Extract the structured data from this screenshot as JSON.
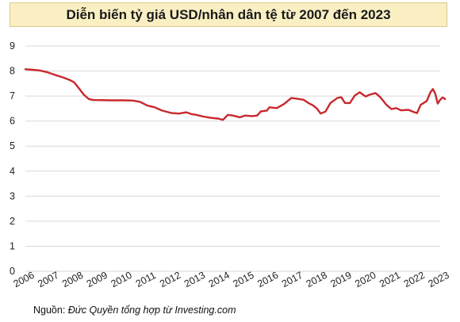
{
  "title": "Diễn biến tỷ giá USD/nhân dân tệ từ 2007 đến 2023",
  "source": {
    "prefix": "Nguồn: ",
    "text": "Đức Quyền tổng hợp từ Investing.com"
  },
  "colors": {
    "line": "#c8282d",
    "banner_bg": "#f9efc3",
    "grid": "#d9d9d9"
  },
  "chart_data": {
    "type": "line",
    "title": "Diễn biến tỷ giá USD/nhân dân tệ từ 2007 đến 2023",
    "xlabel": "",
    "ylabel": "",
    "xlim": [
      2006,
      2023
    ],
    "ylim": [
      0,
      9
    ],
    "grid": true,
    "y_ticks": [
      "0",
      "1",
      "2",
      "3",
      "4",
      "5",
      "6",
      "7",
      "8",
      "9"
    ],
    "x_ticks": [
      "2006",
      "2007",
      "2008",
      "2009",
      "2010",
      "2011",
      "2012",
      "2013",
      "2014",
      "2015",
      "2016",
      "2017",
      "2018",
      "2019",
      "2020",
      "2021",
      "2022",
      "2023"
    ],
    "series": [
      {
        "points": [
          [
            2006.0,
            8.07
          ],
          [
            2006.3,
            8.05
          ],
          [
            2006.6,
            8.02
          ],
          [
            2006.9,
            7.95
          ],
          [
            2007.2,
            7.85
          ],
          [
            2007.5,
            7.76
          ],
          [
            2007.8,
            7.65
          ],
          [
            2008.0,
            7.55
          ],
          [
            2008.2,
            7.3
          ],
          [
            2008.4,
            7.05
          ],
          [
            2008.6,
            6.88
          ],
          [
            2008.8,
            6.84
          ],
          [
            2009.0,
            6.84
          ],
          [
            2009.5,
            6.83
          ],
          [
            2010.0,
            6.83
          ],
          [
            2010.4,
            6.82
          ],
          [
            2010.7,
            6.77
          ],
          [
            2011.0,
            6.62
          ],
          [
            2011.3,
            6.55
          ],
          [
            2011.6,
            6.42
          ],
          [
            2012.0,
            6.32
          ],
          [
            2012.3,
            6.3
          ],
          [
            2012.6,
            6.35
          ],
          [
            2012.8,
            6.28
          ],
          [
            2013.0,
            6.25
          ],
          [
            2013.3,
            6.18
          ],
          [
            2013.6,
            6.13
          ],
          [
            2013.9,
            6.1
          ],
          [
            2014.1,
            6.05
          ],
          [
            2014.3,
            6.25
          ],
          [
            2014.5,
            6.22
          ],
          [
            2014.8,
            6.15
          ],
          [
            2015.0,
            6.22
          ],
          [
            2015.3,
            6.2
          ],
          [
            2015.5,
            6.22
          ],
          [
            2015.65,
            6.39
          ],
          [
            2015.9,
            6.42
          ],
          [
            2016.0,
            6.55
          ],
          [
            2016.3,
            6.52
          ],
          [
            2016.6,
            6.68
          ],
          [
            2016.9,
            6.92
          ],
          [
            2017.1,
            6.9
          ],
          [
            2017.4,
            6.85
          ],
          [
            2017.6,
            6.72
          ],
          [
            2017.8,
            6.62
          ],
          [
            2017.95,
            6.5
          ],
          [
            2018.1,
            6.3
          ],
          [
            2018.3,
            6.38
          ],
          [
            2018.5,
            6.72
          ],
          [
            2018.8,
            6.93
          ],
          [
            2018.95,
            6.95
          ],
          [
            2019.1,
            6.72
          ],
          [
            2019.3,
            6.72
          ],
          [
            2019.5,
            7.02
          ],
          [
            2019.7,
            7.15
          ],
          [
            2019.95,
            6.98
          ],
          [
            2020.1,
            7.05
          ],
          [
            2020.35,
            7.12
          ],
          [
            2020.55,
            6.95
          ],
          [
            2020.8,
            6.65
          ],
          [
            2021.0,
            6.48
          ],
          [
            2021.2,
            6.52
          ],
          [
            2021.4,
            6.43
          ],
          [
            2021.7,
            6.45
          ],
          [
            2021.95,
            6.35
          ],
          [
            2022.05,
            6.32
          ],
          [
            2022.2,
            6.65
          ],
          [
            2022.45,
            6.8
          ],
          [
            2022.6,
            7.15
          ],
          [
            2022.7,
            7.28
          ],
          [
            2022.8,
            7.1
          ],
          [
            2022.9,
            6.7
          ],
          [
            2023.0,
            6.85
          ],
          [
            2023.1,
            6.95
          ],
          [
            2023.2,
            6.88
          ]
        ]
      }
    ]
  }
}
